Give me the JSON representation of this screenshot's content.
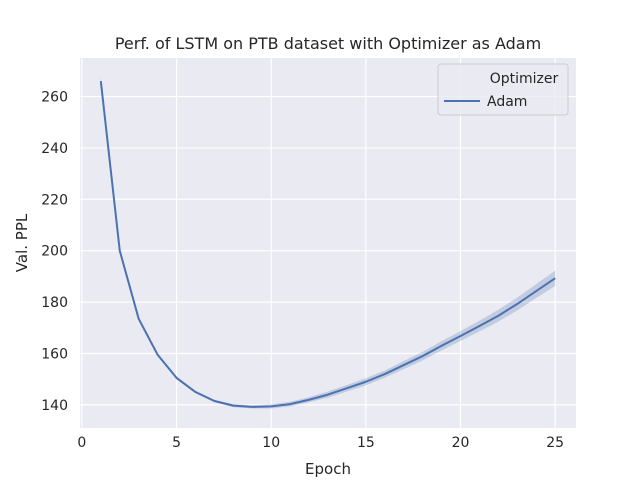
{
  "chart_data": {
    "type": "line",
    "title": "Perf. of LSTM on PTB dataset with Optimizer as Adam",
    "xlabel": "Epoch",
    "ylabel": "Val. PPL",
    "xlim": [
      -0.1,
      26.1
    ],
    "ylim": [
      131,
      275
    ],
    "xticks": [
      0,
      5,
      10,
      15,
      20,
      25
    ],
    "yticks": [
      140,
      160,
      180,
      200,
      220,
      240,
      260
    ],
    "grid": true,
    "legend": {
      "title": "Optimizer",
      "position": "top-right",
      "entries": [
        "Adam"
      ]
    },
    "series": [
      {
        "name": "Adam",
        "color": "#4c72b0",
        "x": [
          1,
          2,
          3,
          4,
          5,
          6,
          7,
          8,
          9,
          10,
          11,
          12,
          13,
          14,
          15,
          16,
          17,
          18,
          19,
          20,
          21,
          22,
          23,
          24,
          25
        ],
        "y": [
          266,
          200,
          173.5,
          159.5,
          150.5,
          145,
          141.5,
          139.7,
          139.2,
          139.4,
          140.3,
          142,
          144,
          146.5,
          149,
          152,
          155.5,
          159,
          163,
          166.8,
          170.7,
          174.7,
          179.3,
          184.3,
          189.3
        ],
        "ci_low": [
          264,
          199,
          172.7,
          158.9,
          149.9,
          144.5,
          141,
          139.1,
          138.6,
          138.6,
          139.4,
          141,
          142.8,
          145.2,
          147.6,
          150.6,
          153.9,
          157.3,
          161.2,
          164.9,
          168.6,
          172.4,
          176.8,
          181.6,
          186.3
        ],
        "ci_high": [
          268,
          201,
          174.3,
          160.1,
          151.1,
          145.5,
          142,
          140.3,
          139.8,
          140.2,
          141.2,
          143,
          145.2,
          147.8,
          150.4,
          153.4,
          157.1,
          160.7,
          164.8,
          168.7,
          172.8,
          177,
          181.8,
          187,
          192.3
        ]
      }
    ]
  }
}
